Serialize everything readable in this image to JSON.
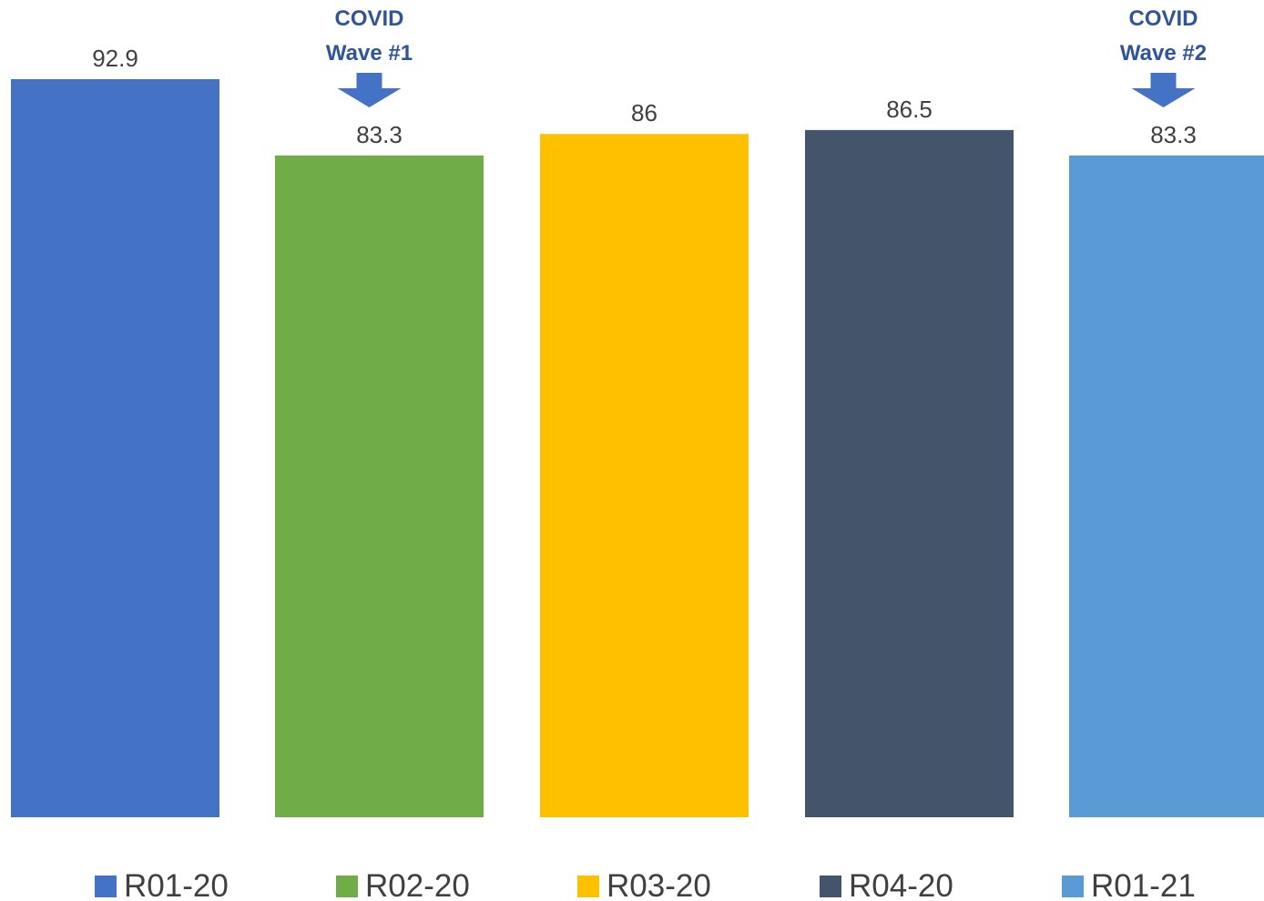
{
  "chart_data": {
    "type": "bar",
    "categories": [
      "R01-20",
      "R02-20",
      "R03-20",
      "R04-20",
      "R01-21"
    ],
    "values": [
      92.9,
      83.3,
      86,
      86.5,
      83.3
    ],
    "value_labels": [
      "92.9",
      "83.3",
      "86",
      "86.5",
      "83.3"
    ],
    "colors": [
      "#4472C4",
      "#70AD47",
      "#FFC000",
      "#44546A",
      "#5B9BD5"
    ],
    "title": "",
    "xlabel": "",
    "ylabel": "",
    "ylim": [
      0,
      93
    ],
    "grid": false,
    "legend_position": "bottom",
    "annotations": [
      {
        "category_index": 1,
        "lines": [
          "COVID",
          "Wave #1"
        ],
        "color": "#2F5597",
        "arrow_color": "#4472C4"
      },
      {
        "category_index": 4,
        "lines": [
          "COVID",
          "Wave #2"
        ],
        "color": "#2F5597",
        "arrow_color": "#4472C4"
      }
    ]
  }
}
